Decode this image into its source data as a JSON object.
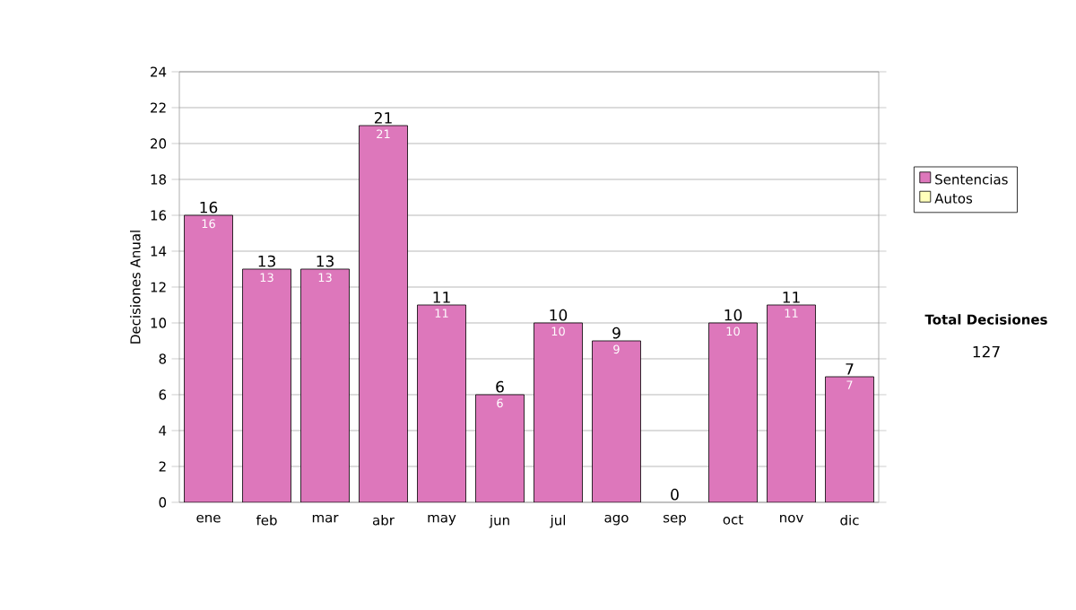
{
  "chart_data": {
    "type": "bar",
    "ylabel": "Decisiones Anual",
    "categories": [
      "ene",
      "feb",
      "mar",
      "abr",
      "may",
      "jun",
      "jul",
      "ago",
      "sep",
      "oct",
      "nov",
      "dic"
    ],
    "stacked": true,
    "series": [
      {
        "name": "Sentencias",
        "color": "#dd77bb",
        "values": [
          16,
          13,
          13,
          21,
          11,
          6,
          10,
          9,
          0,
          10,
          11,
          7
        ],
        "value_labels": [
          "16",
          "13",
          "13",
          "21",
          "11",
          "6",
          "10",
          "9",
          null,
          "10",
          "11",
          "7"
        ]
      },
      {
        "name": "Autos",
        "color": "#ffffbb",
        "values": [
          0,
          0,
          0,
          0,
          0,
          0,
          0,
          0,
          0,
          0,
          0,
          0
        ]
      }
    ],
    "totals": [
      "16",
      "13",
      "13",
      "21",
      "11",
      "6",
      "10",
      "9",
      "0",
      "10",
      "11",
      "7"
    ],
    "ylim": [
      0,
      24
    ],
    "yticks": [
      0,
      2,
      4,
      6,
      8,
      10,
      12,
      14,
      16,
      18,
      20,
      22,
      24
    ],
    "grid": "y",
    "legend": "right",
    "annotations": [
      "Total Decisiones",
      "127"
    ]
  }
}
